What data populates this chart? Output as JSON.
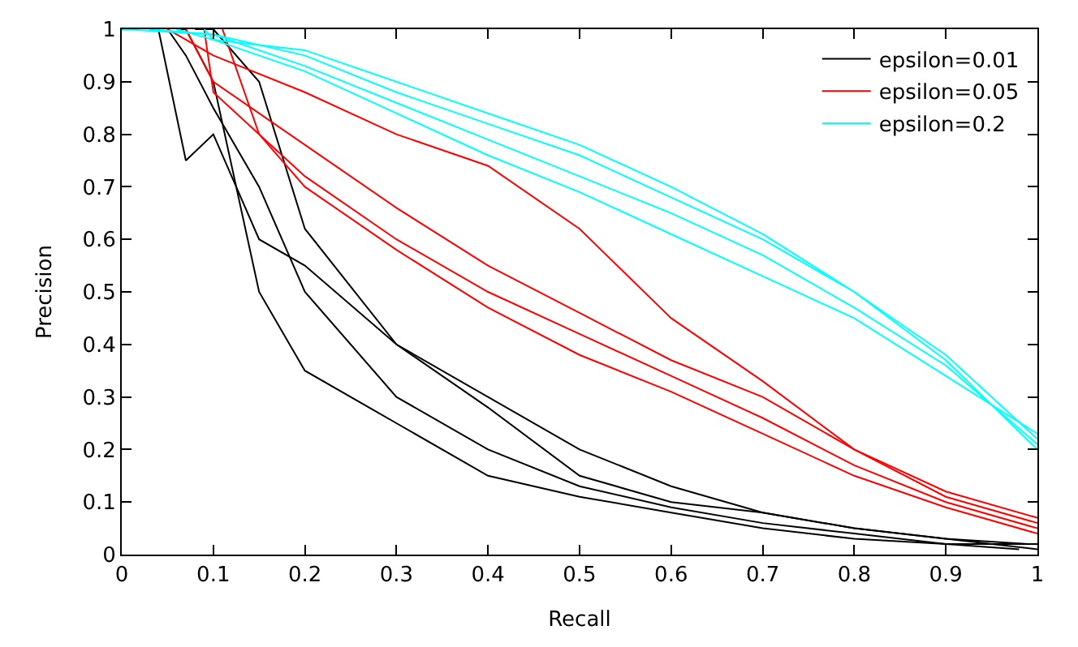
{
  "chart_data": {
    "type": "line",
    "xlabel": "Recall",
    "ylabel": "Precision",
    "xlim": [
      0,
      1
    ],
    "ylim": [
      0,
      1
    ],
    "xticks": [
      0,
      0.1,
      0.2,
      0.3,
      0.4,
      0.5,
      0.6,
      0.7,
      0.8,
      0.9,
      1
    ],
    "yticks": [
      0,
      0.1,
      0.2,
      0.3,
      0.4,
      0.5,
      0.6,
      0.7,
      0.8,
      0.9,
      1
    ],
    "grid": false,
    "legend": "top right",
    "marker": "none",
    "line_style": "solid",
    "series": [
      {
        "name": "epsilon=0.01",
        "color": "#000000",
        "x": [
          0.04,
          0.07,
          0.1,
          0.15,
          0.2,
          0.3,
          0.4,
          0.5,
          0.6,
          0.7,
          0.8,
          0.9,
          1.0
        ],
        "values": [
          1,
          0.75,
          0.8,
          0.6,
          0.55,
          0.4,
          0.28,
          0.15,
          0.1,
          0.08,
          0.05,
          0.03,
          0.01
        ]
      },
      {
        "color": "#000000",
        "x": [
          0.05,
          0.07,
          0.1,
          0.15,
          0.2,
          0.3,
          0.4,
          0.5,
          0.6,
          0.7,
          0.8,
          0.9,
          1.0
        ],
        "values": [
          1,
          0.95,
          0.85,
          0.7,
          0.5,
          0.3,
          0.2,
          0.13,
          0.09,
          0.06,
          0.04,
          0.02,
          0.02
        ]
      },
      {
        "color": "#000000",
        "x": [
          0.06,
          0.07,
          0.1,
          0.15,
          0.2,
          0.3,
          0.4,
          0.5,
          0.6,
          0.7,
          0.8,
          0.9,
          0.98
        ],
        "values": [
          1,
          1,
          0.9,
          0.5,
          0.35,
          0.25,
          0.15,
          0.11,
          0.08,
          0.05,
          0.03,
          0.02,
          0.01
        ]
      },
      {
        "color": "#000000",
        "x": [
          0.08,
          0.09,
          0.1,
          0.15,
          0.2,
          0.3,
          0.4,
          0.5,
          0.6,
          0.7,
          0.8,
          0.9,
          0.99
        ],
        "values": [
          1,
          1,
          1,
          0.9,
          0.62,
          0.4,
          0.3,
          0.2,
          0.13,
          0.08,
          0.05,
          0.03,
          0.02
        ]
      },
      {
        "name": "epsilon=0.05",
        "color": "#ff0000",
        "x": [
          0.05,
          0.1,
          0.2,
          0.3,
          0.4,
          0.5,
          0.6,
          0.7,
          0.8,
          0.9,
          1.0
        ],
        "values": [
          1,
          0.95,
          0.88,
          0.8,
          0.74,
          0.62,
          0.45,
          0.33,
          0.2,
          0.11,
          0.06
        ]
      },
      {
        "color": "#ff0000",
        "x": [
          0.07,
          0.1,
          0.2,
          0.3,
          0.4,
          0.5,
          0.6,
          0.7,
          0.8,
          0.9,
          1.0
        ],
        "values": [
          1,
          0.9,
          0.78,
          0.66,
          0.55,
          0.46,
          0.37,
          0.3,
          0.2,
          0.12,
          0.07
        ]
      },
      {
        "color": "#ff0000",
        "x": [
          0.09,
          0.1,
          0.2,
          0.3,
          0.4,
          0.5,
          0.6,
          0.7,
          0.8,
          0.9,
          1.0
        ],
        "values": [
          1,
          0.88,
          0.72,
          0.6,
          0.5,
          0.42,
          0.34,
          0.26,
          0.17,
          0.1,
          0.05
        ]
      },
      {
        "color": "#ff0000",
        "x": [
          0.11,
          0.15,
          0.2,
          0.3,
          0.4,
          0.5,
          0.6,
          0.7,
          0.8,
          0.9,
          1.0
        ],
        "values": [
          1,
          0.8,
          0.7,
          0.58,
          0.47,
          0.38,
          0.31,
          0.23,
          0.15,
          0.09,
          0.04
        ]
      },
      {
        "name": "epsilon=0.2",
        "color": "#00ffff",
        "x": [
          0,
          0.1,
          0.2,
          0.3,
          0.4,
          0.5,
          0.6,
          0.7,
          0.8,
          0.9,
          1.0
        ],
        "values": [
          1,
          0.99,
          0.95,
          0.88,
          0.82,
          0.76,
          0.68,
          0.6,
          0.5,
          0.38,
          0.22
        ]
      },
      {
        "color": "#00ffff",
        "x": [
          0.03,
          0.1,
          0.2,
          0.3,
          0.4,
          0.5,
          0.6,
          0.7,
          0.8,
          0.9,
          1.0
        ],
        "values": [
          1,
          0.99,
          0.93,
          0.86,
          0.79,
          0.72,
          0.65,
          0.57,
          0.47,
          0.36,
          0.21
        ]
      },
      {
        "color": "#00ffff",
        "x": [
          0.06,
          0.1,
          0.2,
          0.3,
          0.4,
          0.5,
          0.6,
          0.7,
          0.8,
          0.9,
          1.0
        ],
        "values": [
          1,
          0.98,
          0.96,
          0.9,
          0.84,
          0.78,
          0.7,
          0.61,
          0.5,
          0.37,
          0.2
        ]
      },
      {
        "color": "#00ffff",
        "x": [
          0.09,
          0.1,
          0.2,
          0.3,
          0.4,
          0.5,
          0.6,
          0.7,
          0.8,
          0.9,
          1.0
        ],
        "values": [
          1,
          0.98,
          0.92,
          0.84,
          0.76,
          0.69,
          0.61,
          0.53,
          0.45,
          0.34,
          0.23
        ]
      }
    ]
  }
}
